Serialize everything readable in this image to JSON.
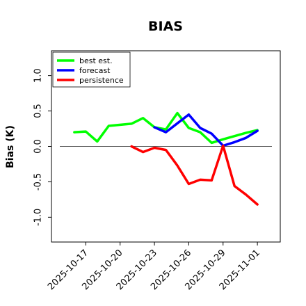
{
  "chart_data": {
    "type": "line",
    "title": "BIAS",
    "ylabel": "Bias (K)",
    "xlabel": "",
    "ylim": [
      -1.35,
      1.35
    ],
    "yticks": [
      -1.0,
      -0.5,
      0.0,
      0.5,
      1.0
    ],
    "ytick_labels": [
      "-1.0",
      "-0.5",
      "0.0",
      "0.5",
      "1.0"
    ],
    "xlim": [
      "2025-10-14",
      "2025-11-03"
    ],
    "xticks": [
      "2025-10-17",
      "2025-10-20",
      "2025-10-23",
      "2025-10-26",
      "2025-10-29",
      "2025-11-01"
    ],
    "highlight_tick": "2025-10-23",
    "highlight_color": "#228b22",
    "zero_line": true,
    "grid": false,
    "legend_position": "top-left",
    "series": [
      {
        "name": "best est.",
        "color": "#00ff00",
        "x": [
          "2025-10-16",
          "2025-10-17",
          "2025-10-18",
          "2025-10-19",
          "2025-10-21",
          "2025-10-22",
          "2025-10-23",
          "2025-10-24",
          "2025-10-25",
          "2025-10-26",
          "2025-10-27",
          "2025-10-28",
          "2025-10-29",
          "2025-10-31",
          "2025-11-01"
        ],
        "values": [
          0.2,
          0.21,
          0.07,
          0.29,
          0.32,
          0.4,
          0.27,
          0.24,
          0.47,
          0.26,
          0.2,
          0.05,
          0.1,
          0.19,
          0.23
        ]
      },
      {
        "name": "forecast",
        "color": "#0000ff",
        "x": [
          "2025-10-23",
          "2025-10-24",
          "2025-10-26",
          "2025-10-27",
          "2025-10-28",
          "2025-10-29",
          "2025-10-30",
          "2025-10-31",
          "2025-11-01"
        ],
        "values": [
          0.27,
          0.2,
          0.45,
          0.26,
          0.18,
          0.01,
          0.06,
          0.12,
          0.22
        ]
      },
      {
        "name": "persistence",
        "color": "#ff0000",
        "x": [
          "2025-10-21",
          "2025-10-22",
          "2025-10-23",
          "2025-10-24",
          "2025-10-25",
          "2025-10-26",
          "2025-10-27",
          "2025-10-28",
          "2025-10-29",
          "2025-10-30",
          "2025-10-31",
          "2025-11-01"
        ],
        "values": [
          0.0,
          -0.08,
          -0.02,
          -0.05,
          -0.27,
          -0.53,
          -0.47,
          -0.48,
          0.01,
          -0.56,
          -0.68,
          -0.82
        ]
      }
    ]
  }
}
